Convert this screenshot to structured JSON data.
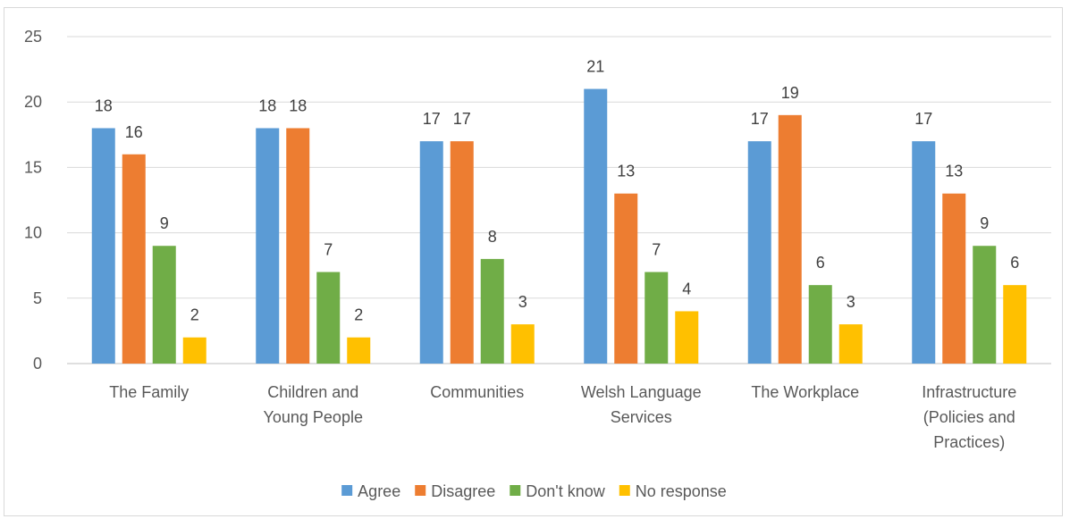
{
  "chart_data": {
    "type": "bar",
    "title": "",
    "xlabel": "",
    "ylabel": "",
    "ylim": [
      0,
      25
    ],
    "yticks": [
      0,
      5,
      10,
      15,
      20,
      25
    ],
    "grid": true,
    "legend_position": "bottom",
    "categories": [
      [
        "The Family"
      ],
      [
        "Children and",
        "Young People"
      ],
      [
        "Communities"
      ],
      [
        "Welsh Language",
        "Services"
      ],
      [
        "The Workplace"
      ],
      [
        "Infrastructure",
        "(Policies and",
        "Practices)"
      ]
    ],
    "series": [
      {
        "name": "Agree",
        "color": "#5b9bd5",
        "values": [
          18,
          18,
          17,
          21,
          17,
          17
        ]
      },
      {
        "name": "Disagree",
        "color": "#ed7d31",
        "values": [
          16,
          18,
          17,
          13,
          19,
          13
        ]
      },
      {
        "name": "Don't know",
        "color": "#70ad47",
        "values": [
          9,
          7,
          8,
          7,
          6,
          9
        ]
      },
      {
        "name": "No response",
        "color": "#ffc000",
        "values": [
          2,
          2,
          3,
          4,
          3,
          6
        ]
      }
    ]
  }
}
